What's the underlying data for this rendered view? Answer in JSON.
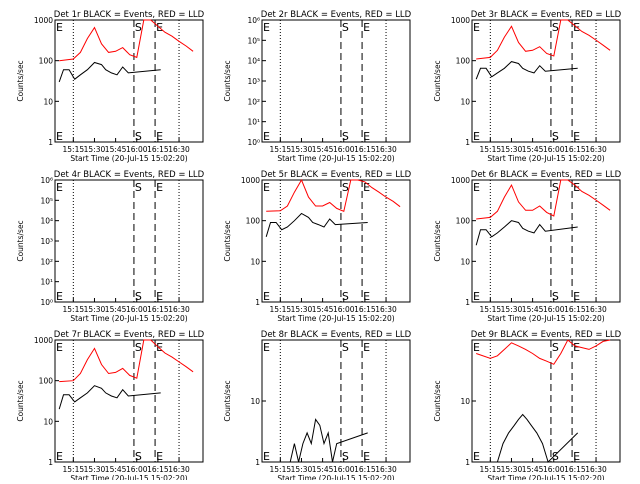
{
  "page": {
    "title": ""
  },
  "chart_data": [
    {
      "type": "line",
      "title": "Det 1r BLACK = Events, RED = LLD",
      "xlabel": "Start Time (20-Jul-15 15:02:20)",
      "ylabel": "Counts/sec",
      "yscale": "log",
      "ylim": [
        1,
        1000
      ],
      "yticks": [
        "1",
        "10",
        "100",
        "1000"
      ],
      "xtick_labels": [
        "15:15",
        "15:30",
        "15:45",
        "16:00",
        "16:15",
        "16:30"
      ],
      "markers": [
        {
          "label": "E",
          "time": "15:02"
        },
        {
          "label": "S",
          "time": "15:58"
        },
        {
          "label": "E",
          "time": "16:13"
        }
      ],
      "series": [
        {
          "color": "#ff0000",
          "x": [
            "15:05",
            "15:15",
            "15:20",
            "15:25",
            "15:30",
            "15:35",
            "15:40",
            "15:45",
            "15:50",
            "15:55",
            "16:00",
            "16:05",
            "16:10",
            "16:15",
            "16:20",
            "16:25",
            "16:30",
            "16:35",
            "16:40"
          ],
          "y": [
            100,
            110,
            160,
            350,
            650,
            260,
            160,
            170,
            210,
            140,
            120,
            1000,
            1000,
            700,
            500,
            400,
            300,
            230,
            170
          ]
        },
        {
          "color": "#000000",
          "x": [
            "15:05",
            "15:08",
            "15:12",
            "15:16",
            "15:20",
            "15:25",
            "15:30",
            "15:35",
            "15:38",
            "15:42",
            "15:46",
            "15:50",
            "15:54",
            "16:17"
          ],
          "y": [
            30,
            60,
            60,
            35,
            45,
            60,
            90,
            80,
            60,
            50,
            45,
            70,
            50,
            60
          ]
        }
      ]
    },
    {
      "type": "line",
      "title": "Det 2r BLACK = Events, RED = LLD",
      "xlabel": "Start Time (20-Jul-15 15:02:20)",
      "ylabel": "Counts/sec",
      "yscale": "log",
      "ylim": [
        1,
        1000000
      ],
      "yticks": [
        "10⁰",
        "10¹",
        "10²",
        "10³",
        "10⁴",
        "10⁵",
        "10⁶"
      ],
      "xtick_labels": [
        "15:15",
        "15:30",
        "15:45",
        "16:00",
        "16:15",
        "16:30"
      ],
      "markers": [
        {
          "label": "E",
          "time": "15:02"
        },
        {
          "label": "S",
          "time": "15:58"
        },
        {
          "label": "E",
          "time": "16:13"
        }
      ],
      "series": []
    },
    {
      "type": "line",
      "title": "Det 3r BLACK = Events, RED = LLD",
      "xlabel": "Start Time (20-Jul-15 15:02:20)",
      "ylabel": "Counts/sec",
      "yscale": "log",
      "ylim": [
        1,
        1000
      ],
      "yticks": [
        "1",
        "10",
        "100",
        "1000"
      ],
      "xtick_labels": [
        "15:15",
        "15:30",
        "15:45",
        "16:00",
        "16:15",
        "16:30"
      ],
      "markers": [
        {
          "label": "E",
          "time": "15:02"
        },
        {
          "label": "S",
          "time": "15:58"
        },
        {
          "label": "E",
          "time": "16:13"
        }
      ],
      "series": [
        {
          "color": "#ff0000",
          "x": [
            "15:05",
            "15:15",
            "15:20",
            "15:25",
            "15:30",
            "15:35",
            "15:40",
            "15:45",
            "15:50",
            "15:55",
            "16:00",
            "16:05",
            "16:10",
            "16:15",
            "16:20",
            "16:25",
            "16:30",
            "16:35",
            "16:40"
          ],
          "y": [
            110,
            120,
            180,
            380,
            700,
            280,
            170,
            180,
            220,
            150,
            130,
            1000,
            1000,
            720,
            520,
            420,
            320,
            240,
            180
          ]
        },
        {
          "color": "#000000",
          "x": [
            "15:05",
            "15:08",
            "15:12",
            "15:16",
            "15:20",
            "15:25",
            "15:30",
            "15:35",
            "15:38",
            "15:42",
            "15:46",
            "15:50",
            "15:54",
            "16:17"
          ],
          "y": [
            35,
            65,
            65,
            40,
            50,
            65,
            95,
            85,
            65,
            55,
            50,
            75,
            55,
            65
          ]
        }
      ]
    },
    {
      "type": "line",
      "title": "Det 4r BLACK = Events, RED = LLD",
      "xlabel": "Start Time (20-Jul-15 15:02:20)",
      "ylabel": "Counts/sec",
      "yscale": "log",
      "ylim": [
        1,
        1000000
      ],
      "yticks": [
        "10⁰",
        "10¹",
        "10²",
        "10³",
        "10⁴",
        "10⁵",
        "10⁶"
      ],
      "xtick_labels": [
        "15:15",
        "15:30",
        "15:45",
        "16:00",
        "16:15",
        "16:30"
      ],
      "markers": [
        {
          "label": "E",
          "time": "15:02"
        },
        {
          "label": "S",
          "time": "15:58"
        },
        {
          "label": "E",
          "time": "16:13"
        }
      ],
      "series": []
    },
    {
      "type": "line",
      "title": "Det 5r BLACK = Events, RED = LLD",
      "xlabel": "Start Time (20-Jul-15 15:02:20)",
      "ylabel": "Counts/sec",
      "yscale": "log",
      "ylim": [
        1,
        1000
      ],
      "yticks": [
        "1",
        "10",
        "100",
        "1000"
      ],
      "xtick_labels": [
        "15:15",
        "15:30",
        "15:45",
        "16:00",
        "16:15",
        "16:30"
      ],
      "markers": [
        {
          "label": "E",
          "time": "15:02"
        },
        {
          "label": "S",
          "time": "15:58"
        },
        {
          "label": "E",
          "time": "16:13"
        }
      ],
      "series": [
        {
          "color": "#ff0000",
          "x": [
            "15:05",
            "15:15",
            "15:20",
            "15:25",
            "15:30",
            "15:35",
            "15:40",
            "15:45",
            "15:50",
            "15:55",
            "16:00",
            "16:05",
            "16:10",
            "16:15",
            "16:20",
            "16:25",
            "16:30",
            "16:35",
            "16:40"
          ],
          "y": [
            170,
            175,
            230,
            500,
            1000,
            380,
            230,
            230,
            280,
            200,
            170,
            1000,
            1000,
            900,
            650,
            500,
            380,
            300,
            220
          ]
        },
        {
          "color": "#000000",
          "x": [
            "15:05",
            "15:08",
            "15:12",
            "15:16",
            "15:20",
            "15:25",
            "15:30",
            "15:35",
            "15:38",
            "15:42",
            "15:46",
            "15:50",
            "15:54",
            "16:17"
          ],
          "y": [
            40,
            90,
            90,
            60,
            70,
            100,
            150,
            120,
            90,
            80,
            70,
            110,
            80,
            90
          ]
        }
      ]
    },
    {
      "type": "line",
      "title": "Det 6r BLACK = Events, RED = LLD",
      "xlabel": "Start Time (20-Jul-15 15:02:20)",
      "ylabel": "Counts/sec",
      "yscale": "log",
      "ylim": [
        1,
        1000
      ],
      "yticks": [
        "1",
        "10",
        "100",
        "1000"
      ],
      "xtick_labels": [
        "15:15",
        "15:30",
        "15:45",
        "16:00",
        "16:15",
        "16:30"
      ],
      "markers": [
        {
          "label": "E",
          "time": "15:02"
        },
        {
          "label": "S",
          "time": "15:58"
        },
        {
          "label": "E",
          "time": "16:13"
        }
      ],
      "series": [
        {
          "color": "#ff0000",
          "x": [
            "15:05",
            "15:15",
            "15:20",
            "15:25",
            "15:30",
            "15:35",
            "15:40",
            "15:45",
            "15:50",
            "15:55",
            "16:00",
            "16:05",
            "16:10",
            "16:15",
            "16:20",
            "16:25",
            "16:30",
            "16:35",
            "16:40"
          ],
          "y": [
            110,
            120,
            170,
            380,
            750,
            290,
            180,
            180,
            230,
            160,
            130,
            1000,
            1000,
            750,
            520,
            420,
            320,
            240,
            180
          ]
        },
        {
          "color": "#000000",
          "x": [
            "15:05",
            "15:08",
            "15:12",
            "15:16",
            "15:20",
            "15:25",
            "15:30",
            "15:35",
            "15:38",
            "15:42",
            "15:46",
            "15:50",
            "15:54",
            "16:17"
          ],
          "y": [
            25,
            60,
            60,
            40,
            50,
            70,
            100,
            90,
            65,
            55,
            50,
            80,
            55,
            70
          ]
        }
      ]
    },
    {
      "type": "line",
      "title": "Det 7r BLACK = Events, RED = LLD",
      "xlabel": "Start Time (20-Jul-15 15:02:20)",
      "ylabel": "Counts/sec",
      "yscale": "log",
      "ylim": [
        1,
        1000
      ],
      "yticks": [
        "1",
        "10",
        "100",
        "1000"
      ],
      "xtick_labels": [
        "15:15",
        "15:30",
        "15:45",
        "16:00",
        "16:15",
        "16:30"
      ],
      "markers": [
        {
          "label": "E",
          "time": "15:02"
        },
        {
          "label": "S",
          "time": "15:58"
        },
        {
          "label": "E",
          "time": "16:13"
        }
      ],
      "series": [
        {
          "color": "#ff0000",
          "x": [
            "15:05",
            "15:15",
            "15:20",
            "15:25",
            "15:30",
            "15:35",
            "15:40",
            "15:45",
            "15:50",
            "15:55",
            "16:00",
            "16:05",
            "16:10",
            "16:15",
            "16:20",
            "16:25",
            "16:30",
            "16:35",
            "16:40"
          ],
          "y": [
            95,
            100,
            150,
            330,
            620,
            250,
            150,
            160,
            200,
            135,
            115,
            1000,
            1000,
            680,
            480,
            380,
            290,
            220,
            165
          ]
        },
        {
          "color": "#000000",
          "x": [
            "15:05",
            "15:08",
            "15:12",
            "15:16",
            "15:20",
            "15:25",
            "15:30",
            "15:35",
            "15:38",
            "15:42",
            "15:46",
            "15:50",
            "15:54",
            "16:17"
          ],
          "y": [
            20,
            45,
            45,
            30,
            38,
            50,
            75,
            65,
            50,
            42,
            38,
            60,
            42,
            50
          ]
        }
      ]
    },
    {
      "type": "line",
      "title": "Det 8r BLACK = Events, RED = LLD",
      "xlabel": "Start Time (20-Jul-15 15:02:20)",
      "ylabel": "Counts/sec",
      "yscale": "log",
      "ylim": [
        1,
        100
      ],
      "yticks": [
        "1",
        "10"
      ],
      "xtick_labels": [
        "15:15",
        "15:30",
        "15:45",
        "16:00",
        "16:15",
        "16:30"
      ],
      "markers": [
        {
          "label": "E",
          "time": "15:02"
        },
        {
          "label": "S",
          "time": "15:58"
        },
        {
          "label": "E",
          "time": "16:13"
        }
      ],
      "series": [
        {
          "color": "#000000",
          "x": [
            "15:22",
            "15:25",
            "15:28",
            "15:31",
            "15:34",
            "15:37",
            "15:40",
            "15:43",
            "15:46",
            "15:49",
            "15:52",
            "15:55",
            "16:17"
          ],
          "y": [
            1,
            2,
            1,
            2,
            3,
            2,
            5,
            4,
            2,
            3,
            1,
            2,
            3
          ]
        }
      ]
    },
    {
      "type": "line",
      "title": "Det 9r BLACK = Events, RED = LLD",
      "xlabel": "Start Time (20-Jul-15 15:02:20)",
      "ylabel": "Counts/sec",
      "yscale": "log",
      "ylim": [
        1,
        100
      ],
      "yticks": [
        "1",
        "10"
      ],
      "xtick_labels": [
        "15:15",
        "15:30",
        "15:45",
        "16:00",
        "16:15",
        "16:30"
      ],
      "markers": [
        {
          "label": "E",
          "time": "15:02"
        },
        {
          "label": "S",
          "time": "15:58"
        },
        {
          "label": "E",
          "time": "16:13"
        }
      ],
      "series": [
        {
          "color": "#ff0000",
          "x": [
            "15:05",
            "15:15",
            "15:20",
            "15:25",
            "15:30",
            "15:35",
            "15:40",
            "15:45",
            "15:50",
            "15:55",
            "16:00",
            "16:05",
            "16:10",
            "16:15",
            "16:20",
            "16:25",
            "16:30",
            "16:35",
            "16:40"
          ],
          "y": [
            60,
            50,
            55,
            70,
            90,
            80,
            70,
            60,
            50,
            45,
            40,
            60,
            100,
            80,
            75,
            70,
            80,
            95,
            100
          ]
        },
        {
          "color": "#000000",
          "x": [
            "15:20",
            "15:24",
            "15:28",
            "15:32",
            "15:35",
            "15:38",
            "15:41",
            "15:44",
            "15:48",
            "15:52",
            "15:56",
            "16:17"
          ],
          "y": [
            1,
            2,
            3,
            4,
            5,
            6,
            5,
            4,
            3,
            2,
            1,
            3
          ]
        }
      ]
    }
  ]
}
